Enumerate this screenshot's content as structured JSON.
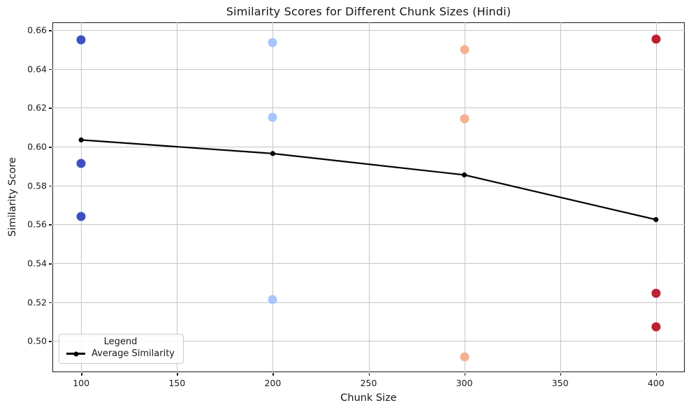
{
  "figure": {
    "background": "#ffffff"
  },
  "chart_data": {
    "type": "scatter",
    "title": "Similarity Scores for Different Chunk Sizes (Hindi)",
    "xlabel": "Chunk Size",
    "ylabel": "Similarity Score",
    "xlim": [
      85,
      415
    ],
    "ylim": [
      0.484,
      0.664
    ],
    "grid": true,
    "x_ticks": [
      100,
      150,
      200,
      250,
      300,
      350,
      400
    ],
    "x_tick_labels": [
      "100",
      "150",
      "200",
      "250",
      "300",
      "350",
      "400"
    ],
    "y_ticks": [
      0.5,
      0.52,
      0.54,
      0.56,
      0.58,
      0.6,
      0.62,
      0.64,
      0.66
    ],
    "y_tick_labels": [
      "0.50",
      "0.52",
      "0.54",
      "0.56",
      "0.58",
      "0.60",
      "0.62",
      "0.64",
      "0.66"
    ],
    "scatter_series": [
      {
        "name": "chunk-size-100",
        "color": "#3D50C3",
        "x": 100,
        "values": [
          0.655,
          0.5915,
          0.564
        ]
      },
      {
        "name": "chunk-size-200",
        "color": "#A9C5FC",
        "x": 200,
        "values": [
          0.6535,
          0.615,
          0.5215
        ]
      },
      {
        "name": "chunk-size-300",
        "color": "#F4B293",
        "x": 300,
        "values": [
          0.65,
          0.6145,
          0.492
        ]
      },
      {
        "name": "chunk-size-400",
        "color": "#BE2034",
        "x": 400,
        "values": [
          0.6555,
          0.5245,
          0.5075
        ]
      }
    ],
    "line_series": {
      "name": "Average Similarity",
      "color": "#000000",
      "x": [
        100,
        200,
        300,
        400
      ],
      "y": [
        0.6035,
        0.5965,
        0.5855,
        0.5625
      ]
    },
    "legend": {
      "title": "Legend",
      "position": "lower-left",
      "entries": [
        {
          "label": "Average Similarity",
          "marker": "line-dot",
          "color": "#000000"
        }
      ]
    }
  }
}
